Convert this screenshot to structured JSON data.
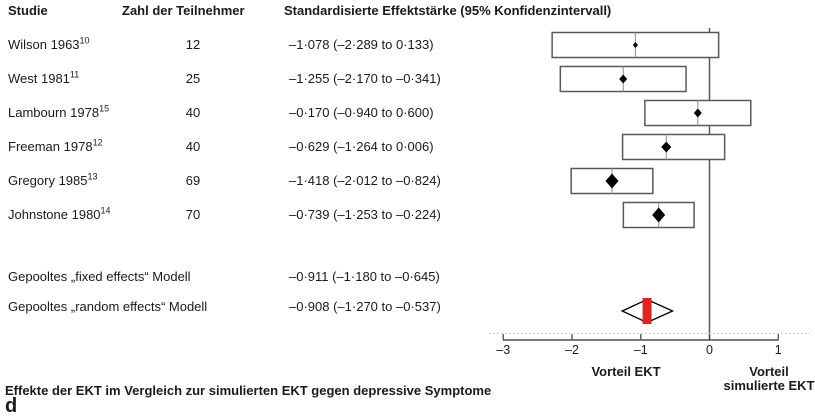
{
  "header": {
    "study": "Studie",
    "participants": "Zahl der Teilnehmer",
    "effect": "Standardisierte Effektstärke (95% Konfidenzintervall)"
  },
  "caption": "Effekte der EKT im Vergleich zur simulierten EKT gegen depressive Symptome",
  "panel_label": "d",
  "axis_labels": {
    "favors_left": "Vorteil EKT",
    "favors_right_line1": "Vorteil",
    "favors_right_line2": "simulierte EKT"
  },
  "colors": {
    "text": "#1a1a1a",
    "box_border": "#595959",
    "estimate_line": "#8c8c8c",
    "zero_line": "#595959",
    "axis": "#4d4d4d",
    "diamond": "#000000",
    "pooled_fill": "#ffffff",
    "pooled_stroke": "#000000",
    "pooled_bar": "#e2231e",
    "dotted_rule": "#c4c4c4"
  },
  "chart_data": {
    "type": "forest",
    "x_axis": {
      "range": [
        -3,
        1
      ],
      "ticks": [
        -3,
        -2,
        -1,
        0,
        1
      ],
      "tick_labels": [
        "–3",
        "–2",
        "–1",
        "0",
        "1"
      ],
      "zero_reference": 0
    },
    "studies": [
      {
        "study": "Wilson 1963",
        "ref": "10",
        "participants": "12",
        "estimate": -1.078,
        "ci_low": -2.289,
        "ci_high": 0.133,
        "effect_text": "–1·078 (–2·289 to 0·133)",
        "weight": 1
      },
      {
        "study": "West 1981",
        "ref": "11",
        "participants": "25",
        "estimate": -1.255,
        "ci_low": -2.17,
        "ci_high": -0.341,
        "effect_text": "–1·255 (–2·170 to –0·341)",
        "weight": 2
      },
      {
        "study": "Lambourn 1978",
        "ref": "15",
        "participants": "40",
        "estimate": -0.17,
        "ci_low": -0.94,
        "ci_high": 0.6,
        "effect_text": "–0·170 (–0·940 to 0·600)",
        "weight": 2
      },
      {
        "study": "Freeman 1978",
        "ref": "12",
        "participants": "40",
        "estimate": -0.629,
        "ci_low": -1.264,
        "ci_high": 0.006,
        "effect_text": "–0·629 (–1·264 to 0·006)",
        "weight": 3,
        "box_hi_drawn": 0.22
      },
      {
        "study": "Gregory 1985",
        "ref": "13",
        "participants": "69",
        "estimate": -1.418,
        "ci_low": -2.012,
        "ci_high": -0.824,
        "effect_text": "–1·418 (–2·012 to –0·824)",
        "weight": 4
      },
      {
        "study": "Johnstone 1980",
        "ref": "14",
        "participants": "70",
        "estimate": -0.739,
        "ci_low": -1.253,
        "ci_high": -0.224,
        "effect_text": "–0·739 (–1·253 to –0·224)",
        "weight": 4
      }
    ],
    "pooled": [
      {
        "label": "Gepooltes „fixed effects“ Modell",
        "estimate": -0.911,
        "ci_low": -1.18,
        "ci_high": -0.645,
        "effect_text": "–0·911 (–1·180 to –0·645)",
        "draw_diamond": false
      },
      {
        "label": "Gepooltes „random effects“ Modell",
        "estimate": -0.908,
        "ci_low": -1.27,
        "ci_high": -0.537,
        "effect_text": "–0·908 (–1·270 to –0·537)",
        "draw_diamond": true
      }
    ]
  }
}
